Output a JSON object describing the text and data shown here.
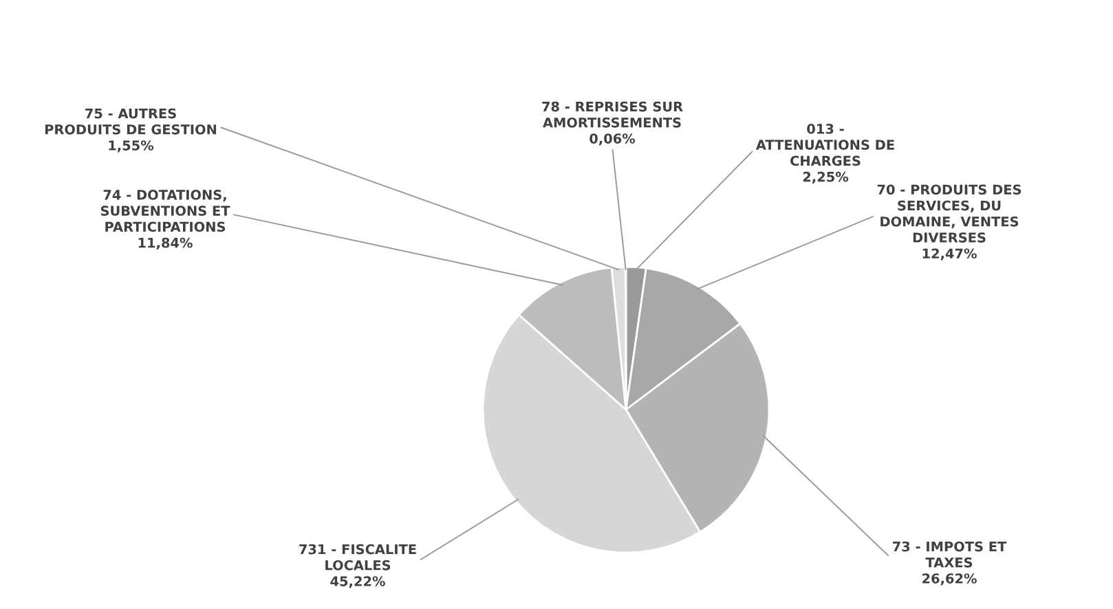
{
  "chart_data": {
    "type": "pie",
    "categories": [
      "013 -\nATTENUATIONS DE\nCHARGES",
      "70 - PRODUITS DES\nSERVICES, DU\nDOMAINE, VENTES\nDIVERSES",
      "73 - IMPOTS ET\nTAXES",
      "731 - FISCALITE\nLOCALES",
      "74 - DOTATIONS,\nSUBVENTIONS ET\nPARTICIPATIONS",
      "75 - AUTRES\nPRODUITS DE GESTION",
      "78 - REPRISES SUR\nAMORTISSEMENTS"
    ],
    "values": [
      2.25,
      12.47,
      26.62,
      45.22,
      11.84,
      1.55,
      0.06
    ],
    "value_labels": [
      "2,25%",
      "12,47%",
      "26,62%",
      "45,22%",
      "11,84%",
      "1,55%",
      "0,06%"
    ],
    "colors": [
      "#9a9a9a",
      "#a8a8a8",
      "#b4b4b4",
      "#d6d6d6",
      "#bcbcbc",
      "#dedede",
      "#505050"
    ],
    "legend": false
  }
}
